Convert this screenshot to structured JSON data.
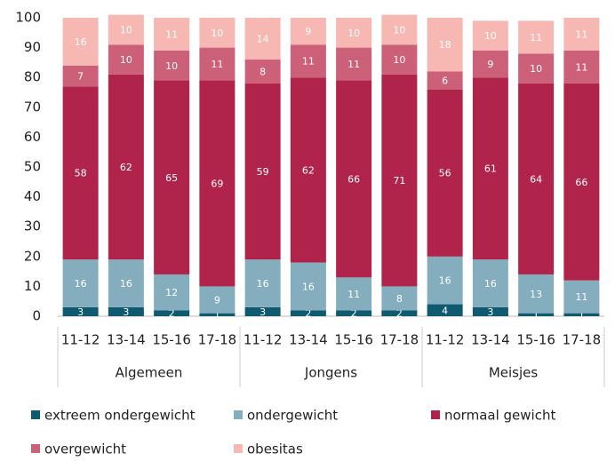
{
  "chart_data": {
    "type": "stacked-bar",
    "categories": [
      "11-12",
      "13-14",
      "15-16",
      "17-18",
      "11-12",
      "13-14",
      "15-16",
      "17-18",
      "11-12",
      "13-14",
      "15-16",
      "17-18"
    ],
    "groups": [
      "Algemeen",
      "Jongens",
      "Meisjes"
    ],
    "series": [
      {
        "name": "extreem ondergewicht",
        "color": "#0f5a6e",
        "values": [
          3,
          3,
          2,
          1,
          3,
          2,
          2,
          2,
          4,
          3,
          1,
          1
        ]
      },
      {
        "name": "ondergewicht",
        "color": "#84aebe",
        "values": [
          16,
          16,
          12,
          9,
          16,
          16,
          11,
          8,
          16,
          16,
          13,
          11
        ]
      },
      {
        "name": "normaal gewicht",
        "color": "#b0234a",
        "values": [
          58,
          62,
          65,
          69,
          59,
          62,
          66,
          71,
          56,
          61,
          64,
          66
        ]
      },
      {
        "name": "overgewicht",
        "color": "#cc6079",
        "values": [
          7,
          10,
          10,
          11,
          8,
          11,
          11,
          10,
          6,
          9,
          10,
          11
        ]
      },
      {
        "name": "obesitas",
        "color": "#f7b8b4",
        "values": [
          16,
          10,
          11,
          10,
          14,
          9,
          10,
          10,
          18,
          10,
          11,
          11
        ]
      }
    ],
    "ylim": [
      0,
      100
    ],
    "yticks": [
      0,
      10,
      20,
      30,
      40,
      50,
      60,
      70,
      80,
      90,
      100
    ],
    "grid": false
  }
}
